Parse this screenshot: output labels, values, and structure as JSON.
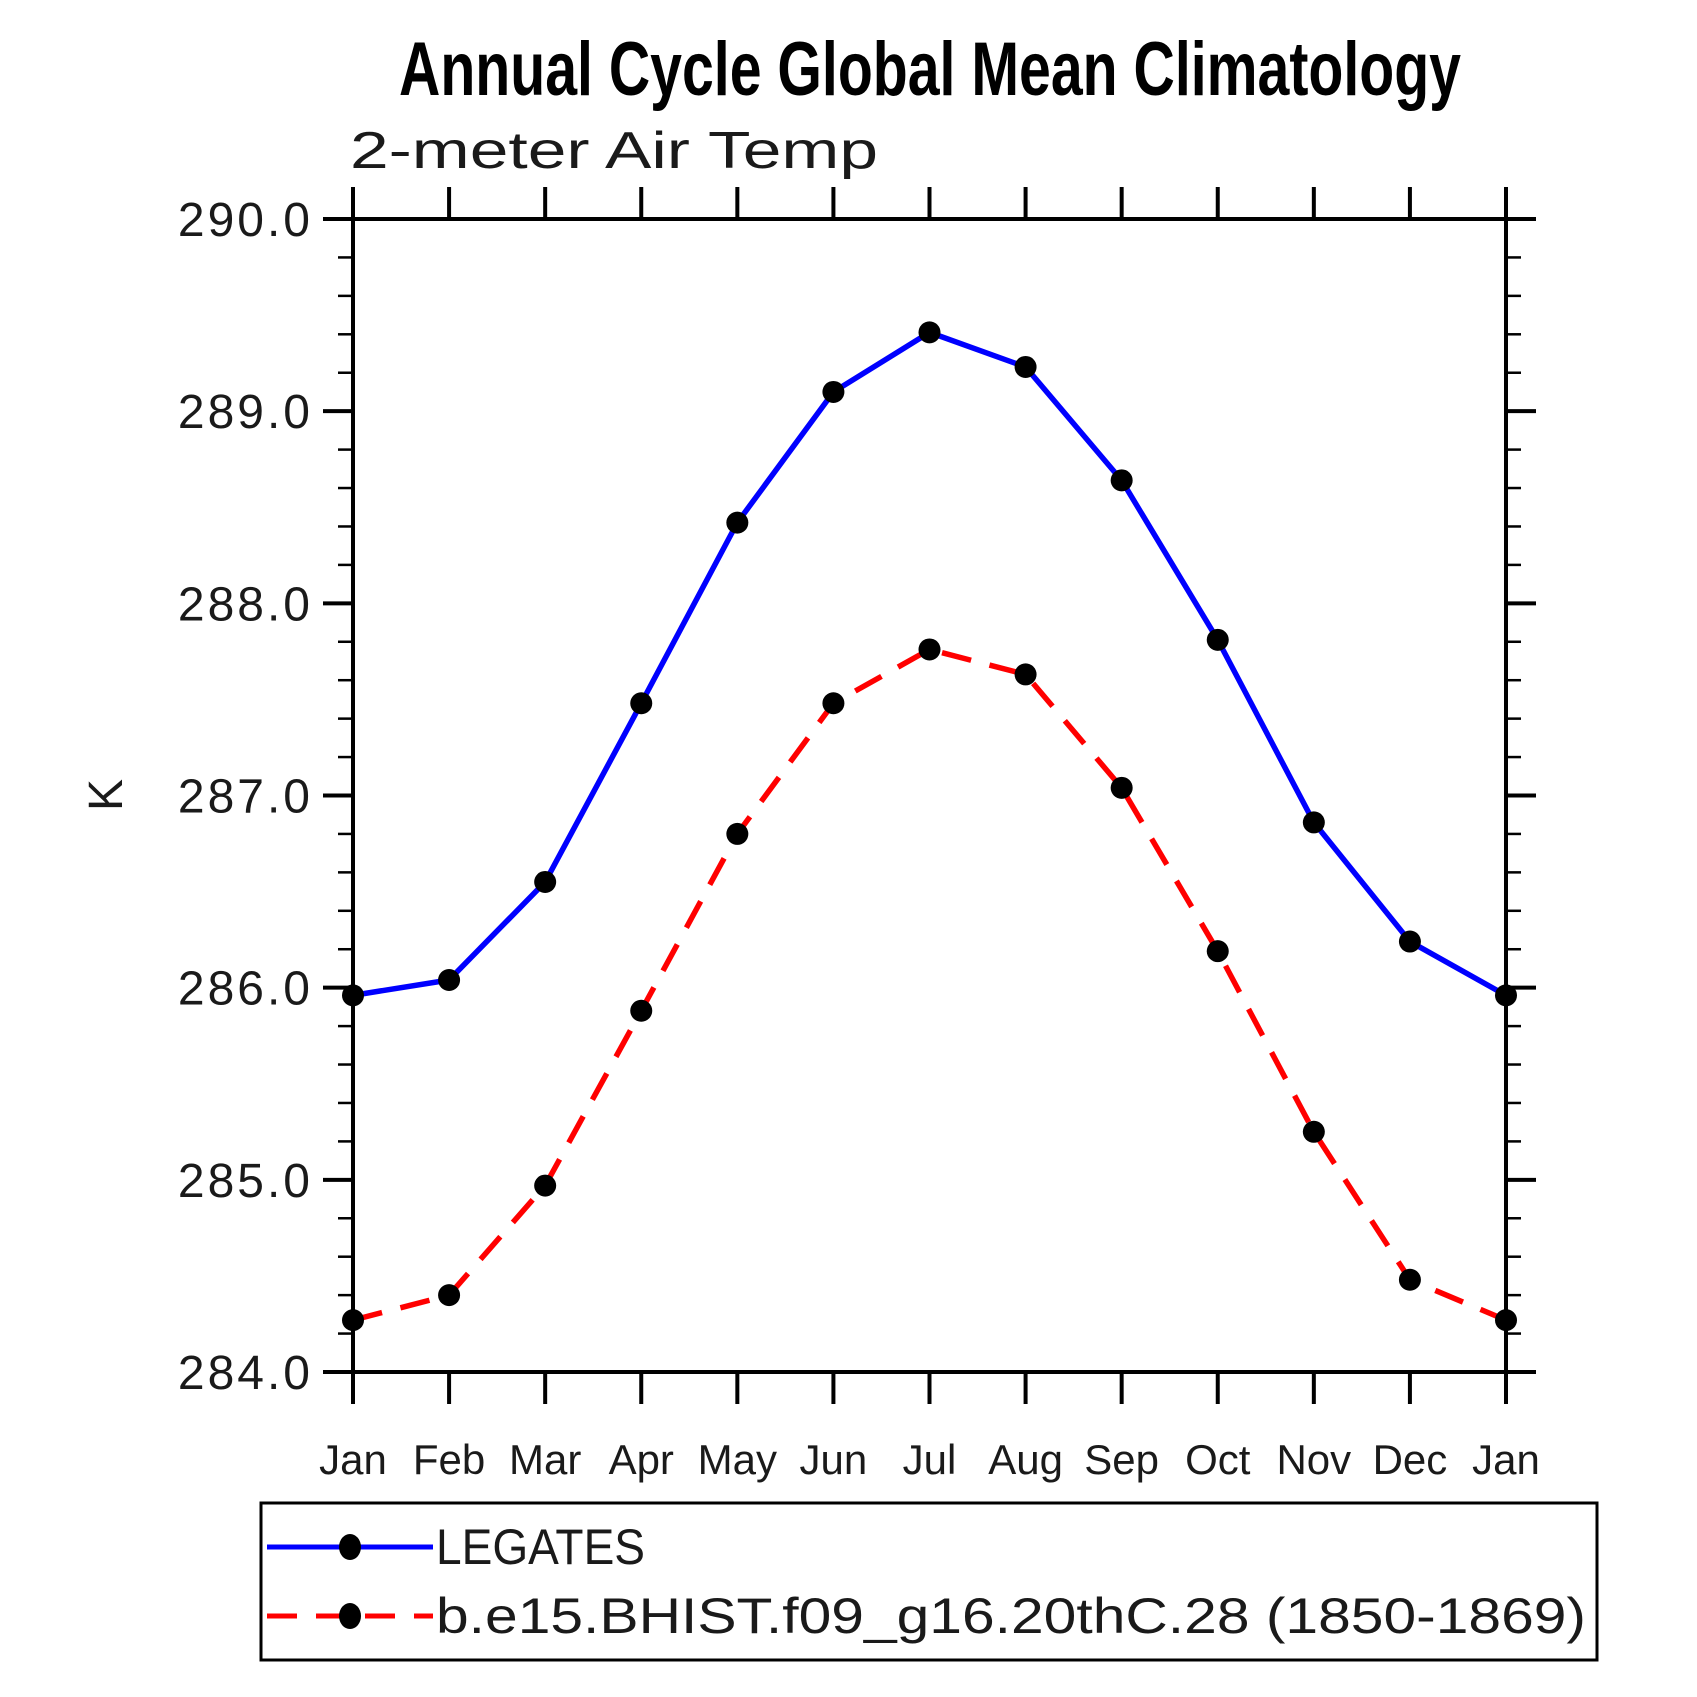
{
  "page": {
    "background_color": "#ffffff",
    "text_color": "#000000"
  },
  "chart_data": {
    "type": "line",
    "title": "Annual Cycle Global Mean Climatology",
    "subtitle": "2-meter Air Temp",
    "xlabel": "",
    "ylabel": "K",
    "x_categories": [
      "Jan",
      "Feb",
      "Mar",
      "Apr",
      "May",
      "Jun",
      "Jul",
      "Aug",
      "Sep",
      "Oct",
      "Nov",
      "Dec",
      "Jan"
    ],
    "ylim": [
      284.0,
      290.0
    ],
    "y_major_step": 1.0,
    "y_minor_step": 0.2,
    "y_tick_labels": [
      "290.0",
      "289.0",
      "288.0",
      "287.0",
      "286.0",
      "285.0",
      "284.0"
    ],
    "grid": false,
    "legend_position": "bottom-left",
    "marker_color": "#000000",
    "series": [
      {
        "name": "LEGATES",
        "color": "#0000ff",
        "line_style": "solid",
        "marker": "filled-circle",
        "values": [
          285.96,
          286.04,
          286.55,
          287.48,
          288.42,
          289.1,
          289.41,
          289.23,
          288.64,
          287.81,
          286.86,
          286.24,
          285.96
        ]
      },
      {
        "name": "b.e15.BHIST.f09_g16.20thC.28 (1850-1869)",
        "color": "#ff0000",
        "line_style": "dashed",
        "marker": "filled-circle",
        "values": [
          284.27,
          284.4,
          284.97,
          285.88,
          286.8,
          287.48,
          287.76,
          287.63,
          287.04,
          286.19,
          285.25,
          284.48,
          284.27
        ]
      }
    ]
  }
}
